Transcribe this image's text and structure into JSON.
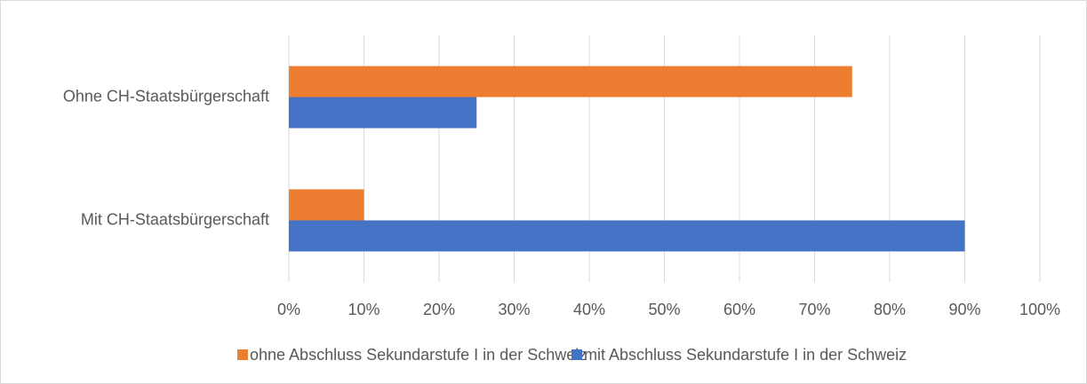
{
  "chart_data": {
    "type": "hbar",
    "categories": [
      "Ohne CH-Staatsbürgerschaft",
      "Mit CH-Staatsbürgerschaft"
    ],
    "series": [
      {
        "name": "ohne Abschluss Sekundarstufe I in der Schweiz",
        "color": "#ed7d31",
        "values": [
          75,
          10
        ]
      },
      {
        "name": "mit Abschluss Sekundarstufe I in der Schweiz",
        "color": "#4472c4",
        "values": [
          25,
          90
        ]
      }
    ],
    "xlim": [
      0,
      100
    ],
    "xticks": [
      {
        "value": 0,
        "label": "0%"
      },
      {
        "value": 10,
        "label": "10%"
      },
      {
        "value": 20,
        "label": "20%"
      },
      {
        "value": 30,
        "label": "30%"
      },
      {
        "value": 40,
        "label": "40%"
      },
      {
        "value": 50,
        "label": "50%"
      },
      {
        "value": 60,
        "label": "60%"
      },
      {
        "value": 70,
        "label": "70%"
      },
      {
        "value": 80,
        "label": "80%"
      },
      {
        "value": 90,
        "label": "90%"
      },
      {
        "value": 100,
        "label": "100%"
      }
    ],
    "grid": true,
    "legend": "bottom"
  }
}
